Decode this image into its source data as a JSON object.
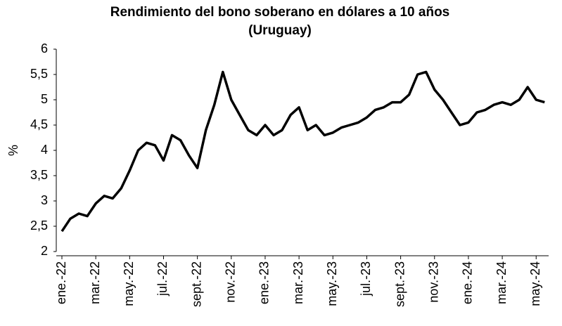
{
  "chart_data": {
    "type": "line",
    "title": "Rendimiento del bono soberano en dólares a 10 años",
    "subtitle": "(Uruguay)",
    "y_label": "%",
    "categories": [
      "ene.-22",
      null,
      null,
      null,
      "mar.-22",
      null,
      null,
      null,
      "may.-22",
      null,
      null,
      null,
      "jul.-22",
      null,
      null,
      null,
      "sept.-22",
      null,
      null,
      null,
      "nov.-22",
      null,
      null,
      null,
      "ene.-23",
      null,
      null,
      null,
      "mar.-23",
      null,
      null,
      null,
      "may.-23",
      null,
      null,
      null,
      "jul.-23",
      null,
      null,
      null,
      "sept.-23",
      null,
      null,
      null,
      "nov.-23",
      null,
      null,
      null,
      "ene.-24",
      null,
      null,
      null,
      "mar.-24",
      null,
      null,
      null,
      "may.-24",
      null
    ],
    "series": [
      {
        "name": "Rendimiento",
        "color": "#000000",
        "values": [
          2.4,
          2.65,
          2.75,
          2.7,
          2.95,
          3.1,
          3.05,
          3.25,
          3.6,
          4.0,
          4.15,
          4.1,
          3.8,
          4.3,
          4.2,
          3.9,
          3.65,
          4.4,
          4.9,
          5.55,
          5.0,
          4.7,
          4.4,
          4.3,
          4.5,
          4.3,
          4.4,
          4.7,
          4.85,
          4.4,
          4.5,
          4.3,
          4.35,
          4.45,
          4.5,
          4.55,
          4.65,
          4.8,
          4.85,
          4.95,
          4.95,
          5.1,
          5.5,
          5.55,
          5.2,
          5.0,
          4.75,
          4.5,
          4.55,
          4.75,
          4.8,
          4.9,
          4.95,
          4.9,
          5.0,
          5.25,
          5.0,
          4.95
        ]
      }
    ],
    "ylim": [
      2,
      6
    ],
    "yticks": [
      2,
      {
        "value": 2.5,
        "label": "2,5"
      },
      3,
      {
        "value": 3.5,
        "label": "3,5"
      },
      4,
      {
        "value": 4.5,
        "label": "4,5"
      },
      5,
      {
        "value": 5.5,
        "label": "5,5"
      },
      6
    ],
    "grid": false
  }
}
